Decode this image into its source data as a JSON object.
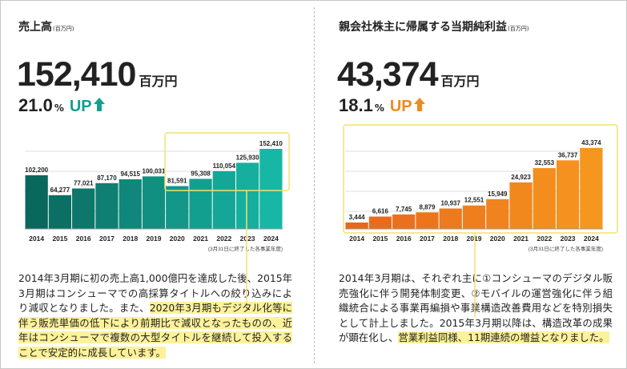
{
  "chart_data": [
    {
      "type": "bar",
      "title": "売上高",
      "title_unit": "(百万円)",
      "headline": "152,410",
      "headline_unit": "百万円",
      "growth": "21.0",
      "growth_unit": "%",
      "growth_label": "UP",
      "categories": [
        "2014",
        "2015",
        "2016",
        "2017",
        "2018",
        "2019",
        "2020",
        "2021",
        "2022",
        "2023",
        "2024"
      ],
      "values": [
        102200,
        64277,
        77021,
        87170,
        94515,
        100031,
        81591,
        95308,
        110054,
        125930,
        152410
      ],
      "value_labels": [
        "102,200",
        "64,277",
        "77,021",
        "87,170",
        "94,515",
        "100,031",
        "81,591",
        "95,308",
        "110,054",
        "125,930",
        "152,410"
      ],
      "color": [
        "#0a675c",
        "#17b7a6"
      ],
      "accent": "#12a08f",
      "ylim": [
        0,
        160000
      ],
      "footnote": "(3月31日に終了した各事業年度)",
      "body": [
        {
          "text": "2014年3月期に初の売上高1,000億円を達成した後、2015年3月期はコンシューマでの高採算タイトルへの絞り込みにより減収となりました。また、",
          "highlight": false
        },
        {
          "text": "2020年3月期もデジタル化等に伴う販売単価の低下により前期比で減収となったものの、近年はコンシューマで複数の大型タイトルを継続して投入することで安定的に成長しています。",
          "highlight": true
        }
      ]
    },
    {
      "type": "bar",
      "title": "親会社株主に帰属する当期純利益",
      "title_unit": "(百万円)",
      "headline": "43,374",
      "headline_unit": "百万円",
      "growth": "18.1",
      "growth_unit": "%",
      "growth_label": "UP",
      "categories": [
        "2014",
        "2015",
        "2016",
        "2017",
        "2018",
        "2019",
        "2020",
        "2021",
        "2022",
        "2023",
        "2024"
      ],
      "values": [
        3444,
        6616,
        7745,
        8879,
        10937,
        12551,
        15949,
        24923,
        32553,
        36737,
        43374
      ],
      "value_labels": [
        "3,444",
        "6,616",
        "7,745",
        "8,879",
        "10,937",
        "12,551",
        "15,949",
        "24,923",
        "32,553",
        "36,737",
        "43,374"
      ],
      "color": [
        "#e8671a",
        "#f5961f"
      ],
      "accent": "#f08a1c",
      "ylim": [
        0,
        45000
      ],
      "footnote": "(3月31日に終了した各事業年度)",
      "body": [
        {
          "text": "2014年3月期は、それぞれ主に①コンシューマのデジタル販売強化に伴う開発体制変更、②モバイルの運営強化に伴う組織統合による事業再編損や事業構造改善費用などを特別損失として計上しました。2015年3月期以降は、構造改革の成果が顕在化し、",
          "highlight": false
        },
        {
          "text": "営業利益同様、11期連続の増益となりました。",
          "highlight": true
        }
      ]
    }
  ]
}
